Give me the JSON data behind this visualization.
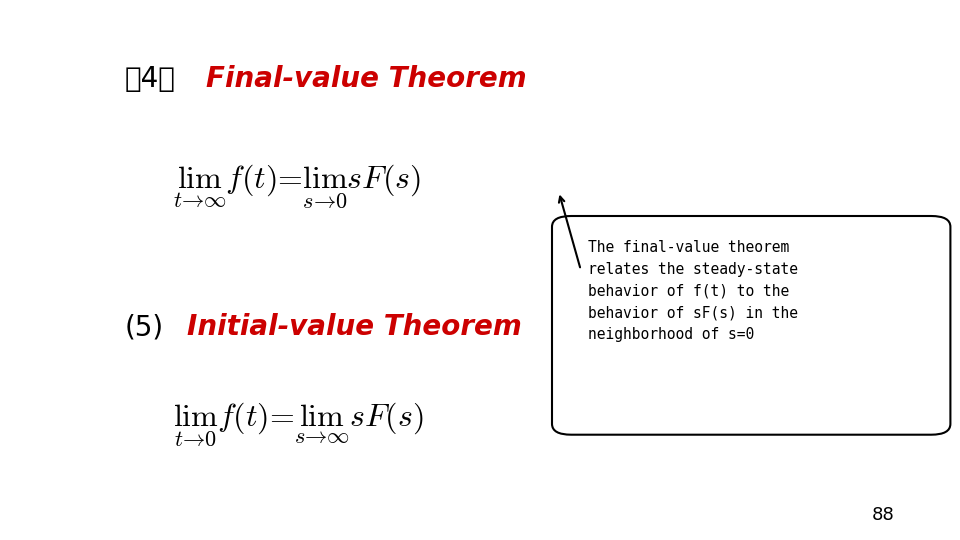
{
  "background_color": "#ffffff",
  "title4_paren": "（4）",
  "title4_text": "Final-value Theorem",
  "title5_paren": "(5)",
  "title5_text": "Initial-value Theorem",
  "title4_color": "#cc0000",
  "title5_color": "#cc0000",
  "paren_color": "#000000",
  "formula1": "\\lim_{t \\to \\infty} f(t) = \\lim_{s \\to 0} sF(s)",
  "formula2": "\\lim_{t \\to 0} f(t) = \\lim_{s \\to \\infty} sF(s)",
  "callout_lines": [
    "The final-value theorem",
    "relates the steady-state",
    "behavior of f(t) to the",
    "behavior of sF(s) in the",
    "neighborhood of s=0"
  ],
  "callout_box_color": "#000000",
  "callout_text_color": "#000000",
  "page_number": "88",
  "page_number_color": "#000000"
}
